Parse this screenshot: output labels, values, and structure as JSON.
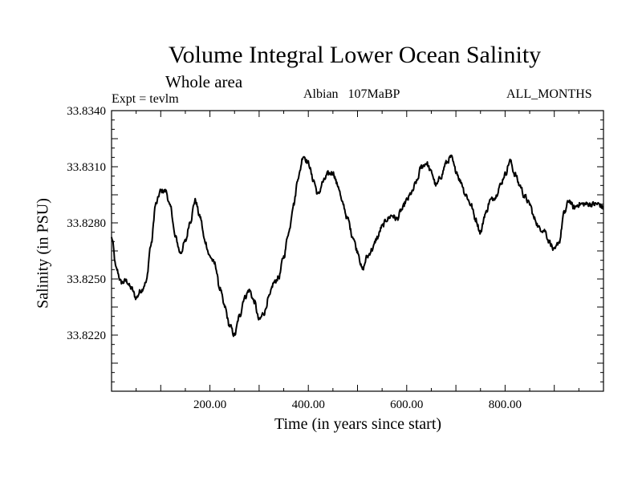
{
  "chart_data": {
    "type": "line",
    "title": "Volume Integral Lower Ocean Salinity",
    "subtitle": "Whole area",
    "annotations": {
      "expt": "Expt = tevlm",
      "period": "Albian   107MaBP",
      "months": "ALL_MONTHS"
    },
    "xlabel": "Time (in years since start)",
    "ylabel": "Salinity (in PSU)",
    "xlim": [
      0,
      1000
    ],
    "ylim": [
      33.819,
      33.834
    ],
    "xticks": [
      200,
      400,
      600,
      800
    ],
    "xtick_labels": [
      "200.00",
      "400.00",
      "600.00",
      "800.00"
    ],
    "yticks": [
      33.822,
      33.825,
      33.828,
      33.831,
      33.834
    ],
    "ytick_labels": [
      "33.8220",
      "33.8250",
      "33.8280",
      "33.8310",
      "33.8340"
    ],
    "series": [
      {
        "name": "salinity",
        "x": [
          0,
          10,
          20,
          30,
          40,
          50,
          60,
          70,
          80,
          90,
          100,
          110,
          120,
          130,
          140,
          150,
          160,
          170,
          180,
          190,
          200,
          210,
          220,
          230,
          240,
          250,
          260,
          270,
          280,
          290,
          300,
          310,
          320,
          330,
          340,
          350,
          360,
          370,
          380,
          390,
          400,
          410,
          420,
          430,
          440,
          450,
          460,
          470,
          480,
          490,
          500,
          510,
          520,
          530,
          540,
          550,
          560,
          570,
          580,
          590,
          600,
          610,
          620,
          630,
          640,
          650,
          660,
          670,
          680,
          690,
          700,
          710,
          720,
          730,
          740,
          750,
          760,
          770,
          780,
          790,
          800,
          810,
          820,
          830,
          840,
          850,
          860,
          870,
          880,
          890,
          900,
          910,
          920,
          930,
          940,
          950,
          960,
          970,
          980,
          990,
          1000
        ],
        "y": [
          33.8272,
          33.8255,
          33.8248,
          33.8249,
          33.8245,
          33.824,
          33.8244,
          33.8248,
          33.8268,
          33.829,
          33.8297,
          33.8297,
          33.8288,
          33.8272,
          33.8264,
          33.827,
          33.8281,
          33.8292,
          33.8283,
          33.827,
          33.8262,
          33.8258,
          33.8245,
          33.8235,
          33.8225,
          33.822,
          33.823,
          33.824,
          33.8244,
          33.8238,
          33.8228,
          33.8232,
          33.824,
          33.8248,
          33.8251,
          33.8262,
          33.8275,
          33.829,
          33.8305,
          33.8316,
          33.8312,
          33.8303,
          33.8295,
          33.8302,
          33.8306,
          33.8307,
          33.83,
          33.829,
          33.8282,
          33.8273,
          33.8265,
          33.8255,
          33.8262,
          33.8266,
          33.8272,
          33.8278,
          33.8282,
          33.8284,
          33.8282,
          33.8287,
          33.8292,
          33.8296,
          33.8302,
          33.831,
          33.8312,
          33.8307,
          33.83,
          33.8305,
          33.8312,
          33.8315,
          33.8308,
          33.8302,
          33.8295,
          33.829,
          33.8282,
          33.8275,
          33.8285,
          33.8292,
          33.8294,
          33.83,
          33.8306,
          33.8313,
          33.8306,
          33.83,
          33.8294,
          33.829,
          33.8282,
          33.8277,
          33.8276,
          33.827,
          33.8265,
          33.827,
          33.8285,
          33.8292,
          33.8288,
          33.829,
          33.829,
          33.829,
          33.829,
          33.829,
          33.8288
        ]
      }
    ],
    "grid": false,
    "line_color": "#000000"
  }
}
